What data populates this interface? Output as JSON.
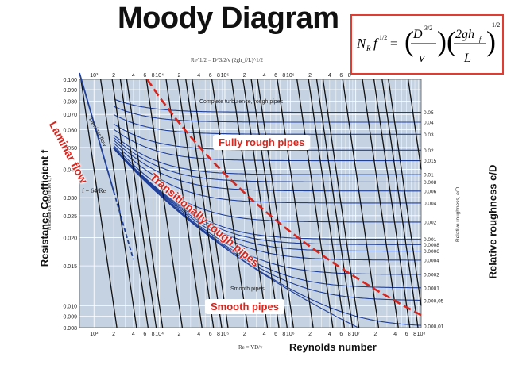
{
  "page": {
    "title": "Moody Diagram",
    "formula": {
      "lhs": "N",
      "lhs_sub": "R",
      "f": "f",
      "exp_half": "1/2",
      "eq": "=",
      "D": "D",
      "exp_32": "3/2",
      "nu": "ν",
      "num2": "2gh",
      "h_sub": "f",
      "L": "L"
    }
  },
  "chart_data": {
    "type": "line",
    "title": "Moody Diagram",
    "xlabel": "Reynolds number",
    "ylabel": "Resistance Coefficient f",
    "right_label": "Relative roughness e/D",
    "x_scale": "log",
    "y_scale": "log",
    "xlim": [
      600,
      100000000
    ],
    "ylim": [
      0.008,
      0.1
    ],
    "y_ticks": [
      "0.100",
      "0.090",
      "0.080",
      "0.070",
      "0.060",
      "0.050",
      "0.040",
      "0.030",
      "0.025",
      "0.020",
      "0.015",
      "0.010",
      "0.009",
      "0.008"
    ],
    "y_tick_values": [
      0.1,
      0.09,
      0.08,
      0.07,
      0.06,
      0.05,
      0.04,
      0.03,
      0.025,
      0.02,
      0.015,
      0.01,
      0.009,
      0.008
    ],
    "top_axis_label": "Re^1/2 = D^3/2/ν (2gh_f/L)^1/2",
    "top_ticks": [
      {
        "label": "10³",
        "v": 1000
      },
      {
        "label": "2",
        "v": 2000
      },
      {
        "label": "4",
        "v": 4000
      },
      {
        "label": "6",
        "v": 6000
      },
      {
        "label": "8",
        "v": 8000
      },
      {
        "label": "10⁴",
        "v": 10000
      },
      {
        "label": "2",
        "v": 20000
      },
      {
        "label": "4",
        "v": 40000
      },
      {
        "label": "6",
        "v": 60000
      },
      {
        "label": "8",
        "v": 80000
      },
      {
        "label": "10⁵",
        "v": 100000
      },
      {
        "label": "2",
        "v": 200000
      },
      {
        "label": "4",
        "v": 400000
      },
      {
        "label": "6",
        "v": 600000
      },
      {
        "label": "8",
        "v": 800000
      },
      {
        "label": "10⁶",
        "v": 1000000
      },
      {
        "label": "2",
        "v": 2000000
      },
      {
        "label": "4",
        "v": 4000000
      },
      {
        "label": "6",
        "v": 6000000
      },
      {
        "label": "8",
        "v": 8000000
      }
    ],
    "bottom_axis_label": "Re = VD/ν",
    "bottom_ticks": [
      {
        "label": "10³",
        "v": 1000
      },
      {
        "label": "2",
        "v": 2000
      },
      {
        "label": "4",
        "v": 4000
      },
      {
        "label": "6",
        "v": 6000
      },
      {
        "label": "8",
        "v": 8000
      },
      {
        "label": "10⁴",
        "v": 10000
      },
      {
        "label": "2",
        "v": 20000
      },
      {
        "label": "4",
        "v": 40000
      },
      {
        "label": "6",
        "v": 60000
      },
      {
        "label": "8",
        "v": 80000
      },
      {
        "label": "10⁵",
        "v": 100000
      },
      {
        "label": "2",
        "v": 200000
      },
      {
        "label": "4",
        "v": 400000
      },
      {
        "label": "6",
        "v": 600000
      },
      {
        "label": "8",
        "v": 800000
      },
      {
        "label": "10⁶",
        "v": 1000000
      },
      {
        "label": "2",
        "v": 2000000
      },
      {
        "label": "4",
        "v": 4000000
      },
      {
        "label": "6",
        "v": 6000000
      },
      {
        "label": "8",
        "v": 8000000
      },
      {
        "label": "10⁷",
        "v": 10000000
      },
      {
        "label": "2",
        "v": 20000000
      },
      {
        "label": "4",
        "v": 40000000
      },
      {
        "label": "6",
        "v": 60000000
      },
      {
        "label": "8",
        "v": 80000000
      },
      {
        "label": "10⁸",
        "v": 100000000
      }
    ],
    "roughness": [
      {
        "label": "0.05",
        "v": 0.05
      },
      {
        "label": "0.04",
        "v": 0.04
      },
      {
        "label": "0.03",
        "v": 0.03
      },
      {
        "label": "0.02",
        "v": 0.02
      },
      {
        "label": "0.015",
        "v": 0.015
      },
      {
        "label": "0.01",
        "v": 0.01
      },
      {
        "label": "0.008",
        "v": 0.008
      },
      {
        "label": "0.006",
        "v": 0.006
      },
      {
        "label": "0.004",
        "v": 0.004
      },
      {
        "label": "0.002",
        "v": 0.002
      },
      {
        "label": "0.001",
        "v": 0.001
      },
      {
        "label": "0.0008",
        "v": 0.0008
      },
      {
        "label": "0.0006",
        "v": 0.0006
      },
      {
        "label": "0.0004",
        "v": 0.0004
      },
      {
        "label": "0.0002",
        "v": 0.0002
      },
      {
        "label": "0.0001",
        "v": 0.0001
      },
      {
        "label": "0.000,05",
        "v": 5e-05
      },
      {
        "label": "0.000,01",
        "v": 1e-05
      }
    ],
    "laminar": {
      "formula": "f = 64/Re",
      "x": [
        600,
        2000,
        4000
      ],
      "y": [
        0.1067,
        0.032,
        0.016
      ]
    },
    "inner_labels": {
      "complete": "Complete turbulence, rough pipes",
      "laminar_flow": "Laminar flow",
      "smooth": "Smooth pipes",
      "left_axis_title": "Resistance coefficient, f",
      "right_axis_title": "Relative roughness, e/D"
    },
    "annotations": {
      "fully_rough": "Fully rough pipes",
      "smooth": "Smooth pipes",
      "laminar": "Laminar flow",
      "transitional": "Transitionally rough pipes"
    },
    "colors": {
      "plot_bg": "#c5d2e2",
      "curve": "#1f3f99",
      "redline": "#d7261e",
      "iso_lines": "#111111"
    }
  }
}
